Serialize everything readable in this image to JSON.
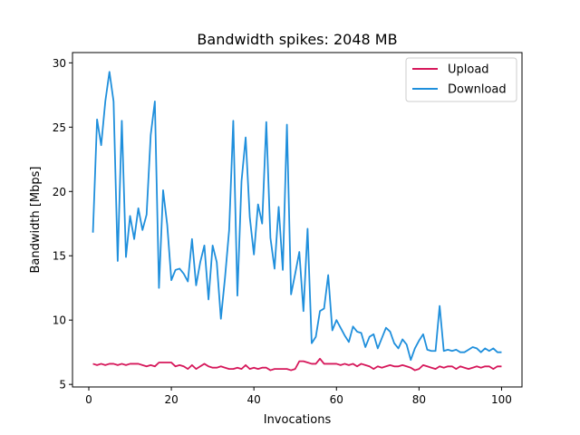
{
  "chart_data": {
    "type": "line",
    "title": "Bandwidth spikes: 2048 MB",
    "xlabel": "Invocations",
    "ylabel": "Bandwidth [Mbps]",
    "xlim": [
      -3.95,
      104.95
    ],
    "ylim": [
      4.8,
      30.8
    ],
    "xticks": [
      0,
      20,
      40,
      60,
      80,
      100
    ],
    "yticks": [
      5,
      10,
      15,
      20,
      25,
      30
    ],
    "grid": false,
    "legend_position": "top-right",
    "x": [
      1,
      2,
      3,
      4,
      5,
      6,
      7,
      8,
      9,
      10,
      11,
      12,
      13,
      14,
      15,
      16,
      17,
      18,
      19,
      20,
      21,
      22,
      23,
      24,
      25,
      26,
      27,
      28,
      29,
      30,
      31,
      32,
      33,
      34,
      35,
      36,
      37,
      38,
      39,
      40,
      41,
      42,
      43,
      44,
      45,
      46,
      47,
      48,
      49,
      50,
      51,
      52,
      53,
      54,
      55,
      56,
      57,
      58,
      59,
      60,
      61,
      62,
      63,
      64,
      65,
      66,
      67,
      68,
      69,
      70,
      71,
      72,
      73,
      74,
      75,
      76,
      77,
      78,
      79,
      80,
      81,
      82,
      83,
      84,
      85,
      86,
      87,
      88,
      89,
      90,
      91,
      92,
      93,
      94,
      95,
      96,
      97,
      98,
      99,
      100
    ],
    "series": [
      {
        "name": "Upload",
        "color": "#d6185b",
        "values": [
          6.6,
          6.5,
          6.6,
          6.5,
          6.6,
          6.6,
          6.5,
          6.6,
          6.5,
          6.6,
          6.6,
          6.6,
          6.5,
          6.4,
          6.5,
          6.4,
          6.7,
          6.7,
          6.7,
          6.7,
          6.4,
          6.5,
          6.4,
          6.2,
          6.5,
          6.2,
          6.4,
          6.6,
          6.4,
          6.3,
          6.3,
          6.4,
          6.3,
          6.2,
          6.2,
          6.3,
          6.2,
          6.5,
          6.2,
          6.3,
          6.2,
          6.3,
          6.3,
          6.1,
          6.2,
          6.2,
          6.2,
          6.2,
          6.1,
          6.2,
          6.8,
          6.8,
          6.7,
          6.6,
          6.6,
          7.0,
          6.6,
          6.6,
          6.6,
          6.6,
          6.5,
          6.6,
          6.5,
          6.6,
          6.4,
          6.6,
          6.5,
          6.4,
          6.2,
          6.4,
          6.3,
          6.4,
          6.5,
          6.4,
          6.4,
          6.5,
          6.4,
          6.3,
          6.1,
          6.2,
          6.5,
          6.4,
          6.3,
          6.2,
          6.4,
          6.3,
          6.4,
          6.4,
          6.2,
          6.4,
          6.3,
          6.2,
          6.3,
          6.4,
          6.3,
          6.4,
          6.4,
          6.2,
          6.4,
          6.4
        ]
      },
      {
        "name": "Download",
        "color": "#1f8fdc",
        "values": [
          16.8,
          25.6,
          23.6,
          27.0,
          29.3,
          27.0,
          14.6,
          25.5,
          14.9,
          18.1,
          16.3,
          18.7,
          17.0,
          18.2,
          24.4,
          27.0,
          12.5,
          20.1,
          17.4,
          13.1,
          13.9,
          14.0,
          13.6,
          13.0,
          16.3,
          12.7,
          14.5,
          15.8,
          11.6,
          15.8,
          14.5,
          10.1,
          13.3,
          17.0,
          25.5,
          11.9,
          20.8,
          24.2,
          18.0,
          15.1,
          19.0,
          17.5,
          25.4,
          16.4,
          14.0,
          18.8,
          13.9,
          25.2,
          12.0,
          13.6,
          15.3,
          10.7,
          17.1,
          8.2,
          8.7,
          10.7,
          10.9,
          13.5,
          9.2,
          10.0,
          9.4,
          8.8,
          8.3,
          9.5,
          9.1,
          9.0,
          7.9,
          8.7,
          8.9,
          7.8,
          8.6,
          9.4,
          9.1,
          8.2,
          7.8,
          8.5,
          8.1,
          6.9,
          7.8,
          8.4,
          8.9,
          7.7,
          7.6,
          7.6,
          11.1,
          7.6,
          7.7,
          7.6,
          7.7,
          7.5,
          7.5,
          7.7,
          7.9,
          7.8,
          7.5,
          7.8,
          7.6,
          7.8,
          7.5,
          7.5
        ]
      }
    ]
  }
}
